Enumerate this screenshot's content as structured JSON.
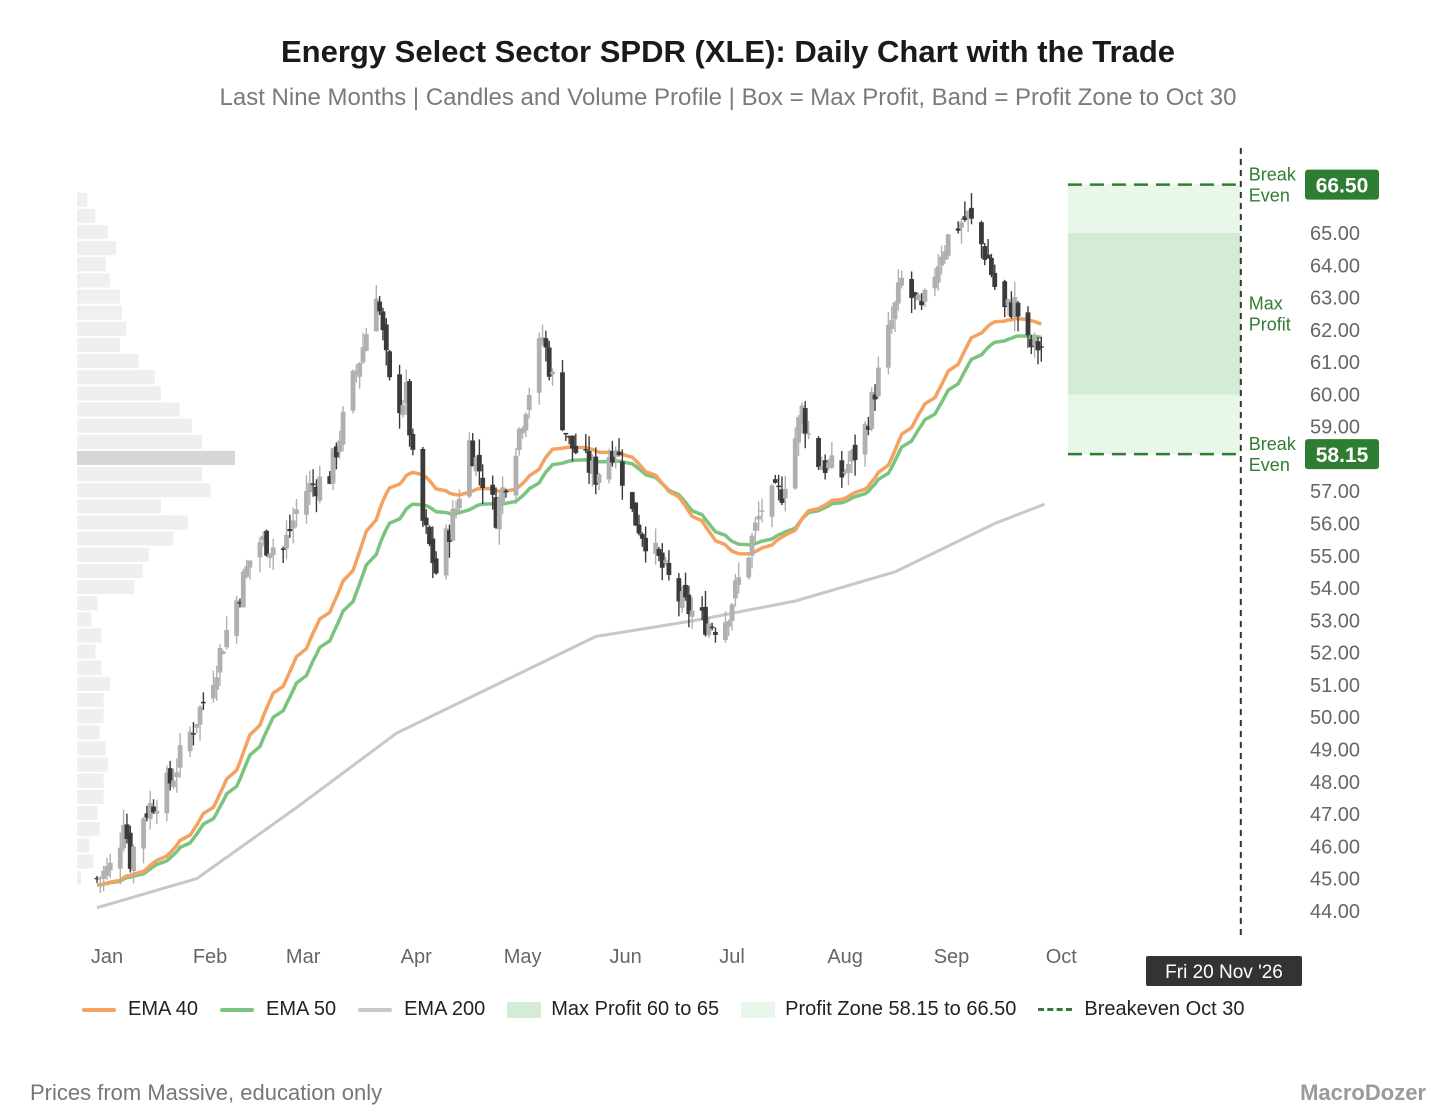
{
  "header": {
    "title": "Energy Select Sector SPDR (XLE): Daily Chart with the Trade",
    "subtitle": "Last Nine Months | Candles and Volume Profile | Box = Max Profit, Band = Profit Zone to Oct 30"
  },
  "footer": {
    "source": "Prices from Massive, education only",
    "brand": "MacroDozer"
  },
  "legend": [
    {
      "label": "EMA 40",
      "kind": "line",
      "color": "#f4a261"
    },
    {
      "label": "EMA 50",
      "kind": "line",
      "color": "#7bc47f"
    },
    {
      "label": "EMA 200",
      "kind": "line",
      "color": "#c8c8c8"
    },
    {
      "label": "Max Profit 60 to 65",
      "kind": "box",
      "color": "#d4ecd5"
    },
    {
      "label": "Profit Zone 58.15 to 66.50",
      "kind": "box",
      "color": "#e9f6ea"
    },
    {
      "label": "Breakeven Oct 30",
      "kind": "dash",
      "color": "#2e7d32"
    }
  ],
  "chart_data": {
    "type": "candlestick",
    "title": "Energy Select Sector SPDR (XLE): Daily Chart with the Trade",
    "xlabel": "",
    "ylabel": "",
    "ylim": [
      43.5,
      67.2
    ],
    "y_ticks": [
      44,
      45,
      46,
      47,
      48,
      49,
      50,
      51,
      52,
      53,
      54,
      55,
      56,
      57,
      58,
      59,
      60,
      61,
      62,
      63,
      64,
      65
    ],
    "x_ticks": [
      "Jan",
      "Feb",
      "Mar",
      "Apr",
      "May",
      "Jun",
      "Jul",
      "Aug",
      "Sep",
      "Oct"
    ],
    "x_tick_days": [
      3,
      34,
      62,
      96,
      128,
      159,
      191,
      225,
      257,
      290
    ],
    "x_domain_days": [
      0,
      372
    ],
    "crosshair_label": "Fri 20 Nov '26",
    "colors": {
      "up": "#b0b0b0",
      "down": "#3a3a3a",
      "ema40": "#f4a261",
      "ema50": "#7bc47f",
      "ema200": "#c8c8c8",
      "trade": "#2e7d32",
      "max_profit": "#d4ecd5",
      "profit_zone": "#e9f6ea"
    },
    "close_anchors": [
      [
        0,
        45.0
      ],
      [
        6,
        45.5
      ],
      [
        8,
        47.0
      ],
      [
        10,
        45.6
      ],
      [
        14,
        47.0
      ],
      [
        22,
        48.0
      ],
      [
        28,
        49.5
      ],
      [
        34,
        51.0
      ],
      [
        40,
        53.0
      ],
      [
        48,
        55.5
      ],
      [
        56,
        55.2
      ],
      [
        62,
        57.0
      ],
      [
        70,
        57.5
      ],
      [
        76,
        60.0
      ],
      [
        80,
        61.5
      ],
      [
        84,
        63.3
      ],
      [
        89,
        59.5
      ],
      [
        93,
        60.0
      ],
      [
        96,
        56.8
      ],
      [
        102,
        54.5
      ],
      [
        108,
        56.5
      ],
      [
        112,
        58.5
      ],
      [
        120,
        56.3
      ],
      [
        126,
        58.5
      ],
      [
        134,
        61.8
      ],
      [
        138,
        60.0
      ],
      [
        142,
        58.5
      ],
      [
        150,
        57.5
      ],
      [
        156,
        58.5
      ],
      [
        160,
        56.5
      ],
      [
        168,
        55.0
      ],
      [
        176,
        53.5
      ],
      [
        182,
        53.0
      ],
      [
        188,
        52.8
      ],
      [
        194,
        54.5
      ],
      [
        200,
        56.5
      ],
      [
        206,
        57.0
      ],
      [
        212,
        59.5
      ],
      [
        216,
        58.0
      ],
      [
        224,
        57.5
      ],
      [
        230,
        58.5
      ],
      [
        236,
        61.0
      ],
      [
        242,
        63.5
      ],
      [
        248,
        62.5
      ],
      [
        254,
        64.5
      ],
      [
        258,
        65.2
      ],
      [
        262,
        65.5
      ],
      [
        268,
        64.2
      ],
      [
        272,
        62.5
      ],
      [
        276,
        62.8
      ],
      [
        280,
        61.5
      ]
    ],
    "ema_200": [
      [
        0,
        44.1
      ],
      [
        30,
        45.0
      ],
      [
        60,
        47.2
      ],
      [
        90,
        49.5
      ],
      [
        120,
        51.0
      ],
      [
        150,
        52.5
      ],
      [
        180,
        53.0
      ],
      [
        210,
        53.6
      ],
      [
        240,
        54.5
      ],
      [
        270,
        56.0
      ],
      [
        285,
        56.6
      ]
    ],
    "last_day": 285,
    "levels": {
      "breakeven_low": 58.15,
      "breakeven_high": 66.5,
      "max_profit_low": 60.0,
      "max_profit_high": 65.0
    },
    "trade_window": {
      "start_day": 292,
      "end_day": 344
    },
    "annotations": [
      {
        "text": "Break\nEven",
        "at": 66.5
      },
      {
        "text": "Max\nProfit",
        "at": 62.5
      },
      {
        "text": "Break\nEven",
        "at": 58.15
      }
    ],
    "value_badges": [
      "66.50",
      "58.15"
    ],
    "volume_profile": {
      "bin_size": 0.5,
      "bins_from_top": [
        0.05,
        0.09,
        0.15,
        0.19,
        0.14,
        0.16,
        0.21,
        0.22,
        0.24,
        0.21,
        0.3,
        0.38,
        0.41,
        0.5,
        0.56,
        0.61,
        0.77,
        0.61,
        0.65,
        0.41,
        0.54,
        0.47,
        0.35,
        0.32,
        0.28,
        0.1,
        0.07,
        0.12,
        0.09,
        0.12,
        0.16,
        0.13,
        0.13,
        0.11,
        0.14,
        0.15,
        0.13,
        0.13,
        0.1,
        0.11,
        0.06,
        0.08,
        0.02
      ]
    }
  }
}
